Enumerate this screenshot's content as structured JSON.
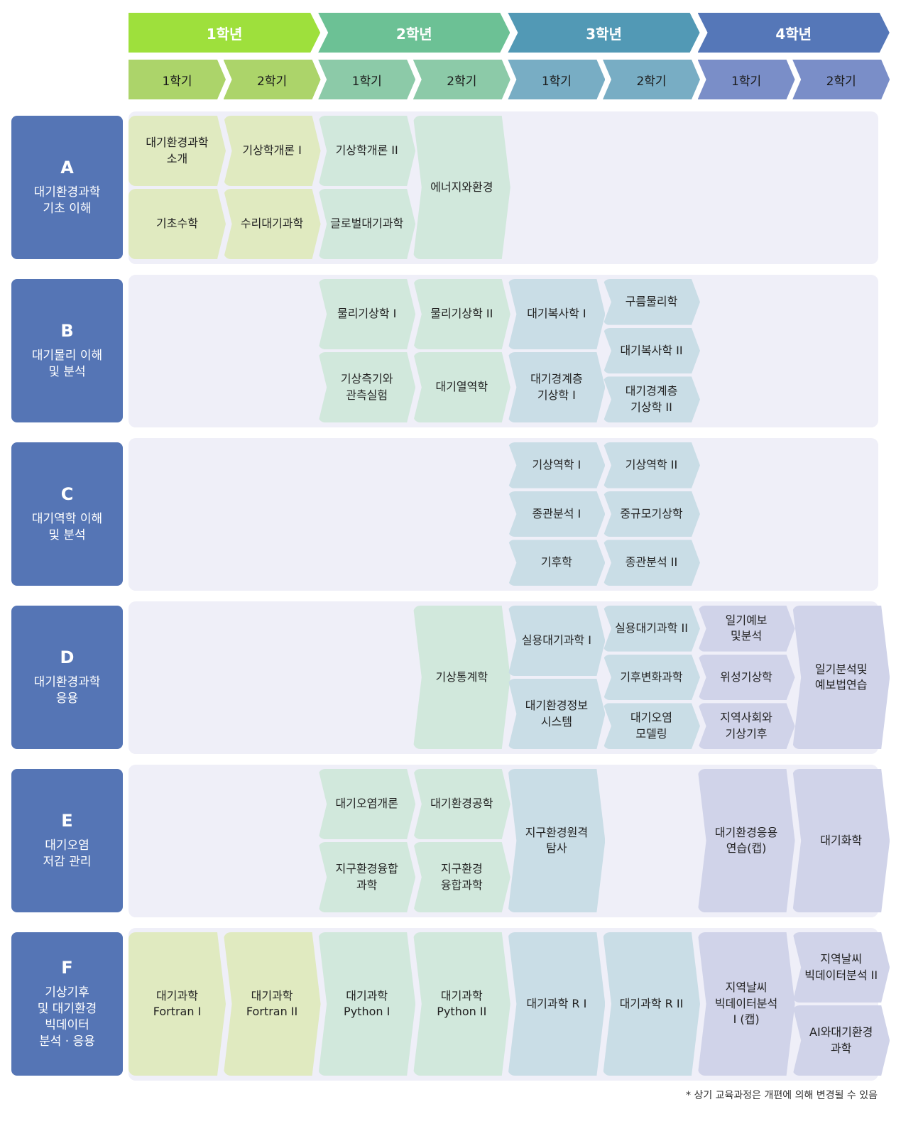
{
  "colors": {
    "years": [
      "#9ee03c",
      "#6cc195",
      "#5299b5",
      "#5577b8"
    ],
    "semesters": [
      "#acd46a",
      "#8ccaa8",
      "#78adc4",
      "#7a8ec8"
    ],
    "cells": [
      "#e0eac0",
      "#d1e8dc",
      "#c9dde6",
      "#d0d3e9"
    ],
    "category": "#5575b5"
  },
  "years": [
    "1학년",
    "2학년",
    "3학년",
    "4학년"
  ],
  "semesters": [
    "1학기",
    "2학기",
    "1학기",
    "2학기",
    "1학기",
    "2학기",
    "1학기",
    "2학기"
  ],
  "categories": [
    {
      "letter": "A",
      "name": "대기환경과학\n기초 이해",
      "semesters": [
        [
          "대기환경과학\n소개",
          "기초수학"
        ],
        [
          "기상학개론 I",
          "수리대기과학"
        ],
        [
          "기상학개론 II",
          "글로벌대기과학"
        ],
        [
          "에너지와환경"
        ],
        [],
        [],
        [],
        []
      ]
    },
    {
      "letter": "B",
      "name": "대기물리 이해\n및 분석",
      "semesters": [
        [],
        [],
        [
          "물리기상학 I",
          "기상측기와\n관측실험"
        ],
        [
          "물리기상학 II",
          "대기열역학"
        ],
        [
          "대기복사학 I",
          "대기경계층\n기상학 I"
        ],
        [
          "구름물리학",
          "대기복사학 II",
          "대기경계층\n기상학 II"
        ],
        [],
        []
      ]
    },
    {
      "letter": "C",
      "name": "대기역학 이해\n및 분석",
      "semesters": [
        [],
        [],
        [],
        [],
        [
          "기상역학 I",
          "종관분석 I",
          "기후학"
        ],
        [
          "기상역학 II",
          "중규모기상학",
          "종관분석 II"
        ],
        [],
        []
      ]
    },
    {
      "letter": "D",
      "name": "대기환경과학\n응용",
      "semesters": [
        [],
        [],
        [],
        [
          "기상통계학"
        ],
        [
          "실용대기과학 I",
          "대기환경정보\n시스템"
        ],
        [
          "실용대기과학 II",
          "기후변화과학",
          "대기오염\n모델링"
        ],
        [
          "일기예보\n및분석",
          "위성기상학",
          "지역사회와\n기상기후"
        ],
        [
          "일기분석및\n예보법연습"
        ]
      ]
    },
    {
      "letter": "E",
      "name": "대기오염\n저감 관리",
      "semesters": [
        [],
        [],
        [
          "대기오염개론",
          "지구환경융합\n과학"
        ],
        [
          "대기환경공학",
          "지구환경\n융합과학"
        ],
        [
          "지구환경원격\n탐사"
        ],
        [],
        [
          "대기환경응용\n연습(캡)"
        ],
        [
          "대기화학"
        ]
      ]
    },
    {
      "letter": "F",
      "name": "기상기후\n및 대기환경\n빅데이터\n분석 · 응용",
      "semesters": [
        [
          "대기과학\nFortran I"
        ],
        [
          "대기과학\nFortran II"
        ],
        [
          "대기과학\nPython I"
        ],
        [
          "대기과학\nPython II"
        ],
        [
          "대기과학 R I"
        ],
        [
          "대기과학 R II"
        ],
        [
          "지역날씨\n빅데이터분석\nI (캡)"
        ],
        [
          "지역날씨\n빅데이터분석 II",
          "AI와대기환경\n과학"
        ]
      ]
    }
  ],
  "footnote": "* 상기 교육과정은 개편에 의해 변경될 수 있음"
}
